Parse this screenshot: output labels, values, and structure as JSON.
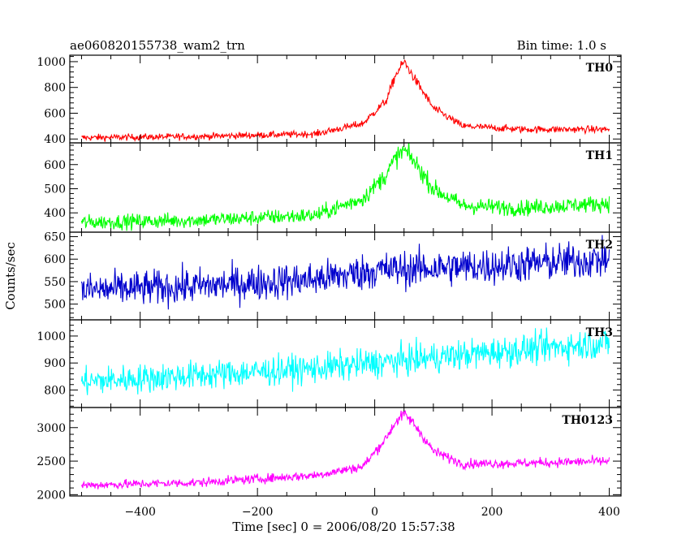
{
  "header": {
    "left_title": "ae060820155738_wam2_trn",
    "right_title": "Bin time: 1.0 s"
  },
  "axes": {
    "xlabel": "Time [sec] 0 = 2006/08/20 15:57:38",
    "ylabel": "Counts/sec"
  },
  "chart_data": {
    "type": "line",
    "title": "ae060820155738_wam2_trn",
    "subtitle": "Bin time: 1.0 s",
    "xlabel": "Time [sec] 0 = 2006/08/20 15:57:38",
    "ylabel": "Counts/sec",
    "xlim": [
      -520,
      420
    ],
    "x_ticks": [
      -400,
      -200,
      0,
      200,
      400
    ],
    "x_tick_labels": [
      "−400",
      "−200",
      "0",
      "200",
      "400"
    ],
    "x_data_range": [
      -500,
      400
    ],
    "grid": false,
    "legend": "none",
    "panels": [
      {
        "name": "TH0",
        "color": "#ff0000",
        "ylim": [
          370,
          1050
        ],
        "y_ticks": [
          400,
          600,
          800,
          1000
        ],
        "baseline_points": [
          [
            -500,
            410
          ],
          [
            -300,
            420
          ],
          [
            -100,
            440
          ],
          [
            -20,
            520
          ],
          [
            20,
            700
          ],
          [
            35,
            890
          ],
          [
            50,
            1000
          ],
          [
            65,
            890
          ],
          [
            100,
            640
          ],
          [
            150,
            500
          ],
          [
            250,
            475
          ],
          [
            400,
            475
          ]
        ],
        "noise": 18
      },
      {
        "name": "TH1",
        "color": "#00ff00",
        "ylim": [
          320,
          690
        ],
        "y_ticks": [
          400,
          500,
          600
        ],
        "baseline_points": [
          [
            -500,
            360
          ],
          [
            -300,
            370
          ],
          [
            -100,
            390
          ],
          [
            -20,
            460
          ],
          [
            20,
            560
          ],
          [
            35,
            625
          ],
          [
            50,
            660
          ],
          [
            65,
            620
          ],
          [
            100,
            500
          ],
          [
            150,
            430
          ],
          [
            250,
            420
          ],
          [
            400,
            440
          ]
        ],
        "noise": 22
      },
      {
        "name": "TH2",
        "color": "#0000cd",
        "ylim": [
          465,
          660
        ],
        "y_ticks": [
          500,
          550,
          600,
          650
        ],
        "baseline_points": [
          [
            -500,
            530
          ],
          [
            -300,
            540
          ],
          [
            -100,
            555
          ],
          [
            0,
            575
          ],
          [
            200,
            585
          ],
          [
            400,
            600
          ]
        ],
        "noise": 28
      },
      {
        "name": "TH3",
        "color": "#00ffff",
        "ylim": [
          735,
          1060
        ],
        "y_ticks": [
          800,
          900,
          1000
        ],
        "baseline_points": [
          [
            -500,
            830
          ],
          [
            -300,
            855
          ],
          [
            -100,
            880
          ],
          [
            0,
            900
          ],
          [
            200,
            940
          ],
          [
            400,
            975
          ]
        ],
        "noise": 38
      },
      {
        "name": "TH0123",
        "color": "#ff00ff",
        "ylim": [
          1980,
          3300
        ],
        "y_ticks": [
          2000,
          2500,
          3000
        ],
        "baseline_points": [
          [
            -500,
            2140
          ],
          [
            -300,
            2180
          ],
          [
            -100,
            2290
          ],
          [
            -20,
            2420
          ],
          [
            20,
            2850
          ],
          [
            35,
            3080
          ],
          [
            50,
            3200
          ],
          [
            65,
            3080
          ],
          [
            100,
            2650
          ],
          [
            150,
            2460
          ],
          [
            250,
            2470
          ],
          [
            400,
            2500
          ]
        ],
        "noise": 48
      }
    ]
  }
}
